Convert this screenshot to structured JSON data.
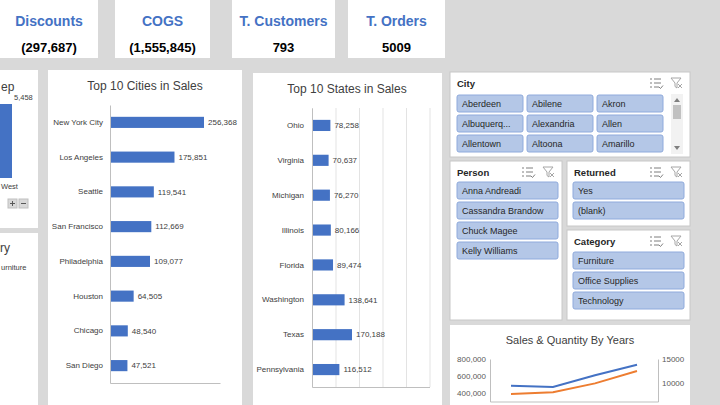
{
  "kpis": [
    {
      "title": "Discounts",
      "value": -297687,
      "label": "(297,687)"
    },
    {
      "title": "COGS",
      "value": -1555845,
      "label": "(1,555,845)"
    },
    {
      "title": "T. Customers",
      "value": 793
    },
    {
      "title": "T. Orders",
      "value": 5009
    }
  ],
  "fragments": {
    "left_top": [
      "ep",
      "5,458",
      "West"
    ],
    "left_bottom": [
      "ry",
      "urniture"
    ]
  },
  "chart_data": [
    {
      "type": "bar",
      "orientation": "horizontal",
      "title": "Top 10 Cities in Sales",
      "categories": [
        "New York City",
        "Los Angeles",
        "Seattle",
        "San Francisco",
        "Philadelphia",
        "Houston",
        "Chicago",
        "San Diego"
      ],
      "values": [
        256368,
        175851,
        119541,
        112669,
        109077,
        64505,
        48540,
        47521
      ],
      "value_labels": [
        "256,368",
        "175,851",
        "119,541",
        "112,669",
        "109,077",
        "64,505",
        "48,540",
        "47,521"
      ],
      "color": "#4472c4",
      "xlim": [
        0,
        300000
      ],
      "data_labels": true,
      "tick_labels": "y",
      "grid": false
    },
    {
      "type": "bar",
      "orientation": "horizontal",
      "title": "Top 10 States in Sales",
      "categories": [
        "Ohio",
        "Virginia",
        "Michigan",
        "Illinois",
        "Florida",
        "Washington",
        "Texas",
        "Pennsylvania"
      ],
      "values": [
        78258,
        70637,
        76270,
        80166,
        89474,
        138641,
        170188,
        116512
      ],
      "value_labels": [
        "78,258",
        "70,637",
        "76,270",
        "80,166",
        "89,474",
        "138,641",
        "170,188",
        "116,512"
      ],
      "color": "#4472c4",
      "xlim": [
        0,
        500000
      ],
      "xticks": [
        0,
        100000,
        200000,
        300000,
        400000,
        500000
      ],
      "data_labels": true,
      "tick_labels": "y",
      "grid": true
    },
    {
      "type": "line",
      "title": "Sales & Quantity By Years",
      "categories": [
        null,
        null,
        null,
        null
      ],
      "ylim": [
        300000,
        800000
      ],
      "yticks": [
        {
          "value": 400000,
          "label": "400,000"
        },
        {
          "value": 600000,
          "label": "600,000"
        },
        {
          "value": 800000,
          "label": "800,000"
        }
      ],
      "y2lim": [
        6000,
        15000
      ],
      "y2ticks": [
        10000,
        15000
      ],
      "series": [
        {
          "color": "#4472c4",
          "values": [
            484247,
            470533,
            609206,
            733215
          ]
        },
        {
          "color": "#ed7d31",
          "axis": "y2",
          "values": [
            7581,
            7979,
            9837,
            12476
          ]
        }
      ]
    }
  ],
  "slicers": [
    {
      "title": "City",
      "items": [
        "Aberdeen",
        "Abilene",
        "Akron",
        "Albuquerq...",
        "Alexandria",
        "Allen",
        "Allentown",
        "Altoona",
        "Amarillo"
      ]
    },
    {
      "title": "Person",
      "items": [
        "Anna Andreadi",
        "Cassandra Brandow",
        "Chuck Magee",
        "Kelly Williams"
      ]
    },
    {
      "title": "Returned",
      "items": [
        "Yes",
        "(blank)"
      ]
    },
    {
      "title": "Category",
      "items": [
        "Furniture",
        "Office Supplies",
        "Technology"
      ]
    }
  ]
}
